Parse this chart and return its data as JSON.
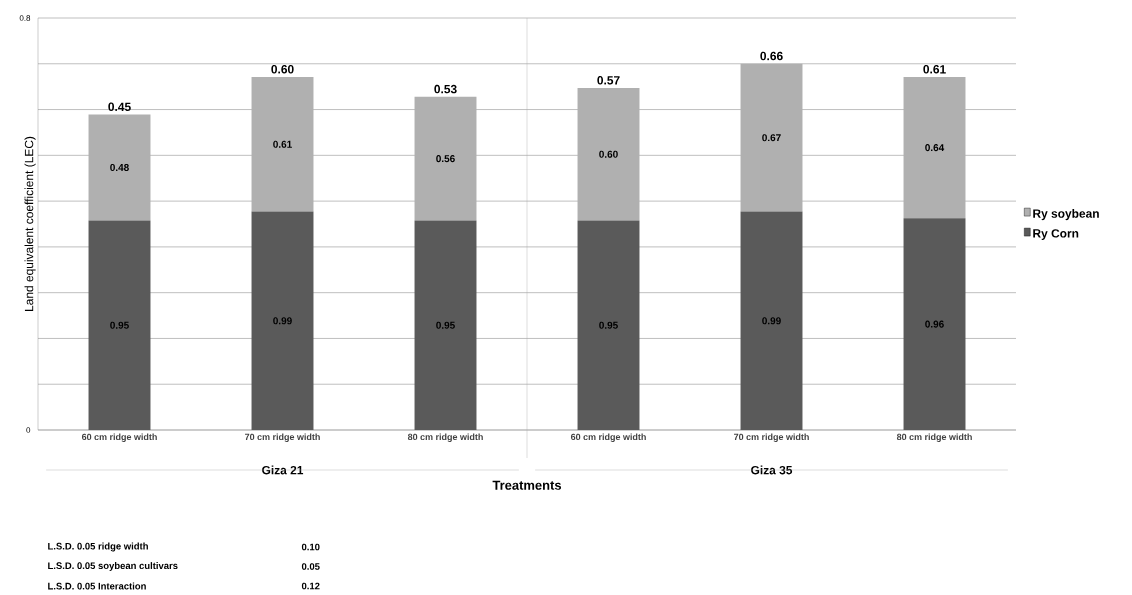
{
  "chart_data": {
    "type": "bar",
    "stacked": true,
    "ylabel": "Land equivalent coefficient (LEC)",
    "xlabel": "Treatments",
    "categories": [
      "60 cm ridge width",
      "70 cm ridge width",
      "80 cm ridge width",
      "60 cm ridge width",
      "70 cm ridge width",
      "80 cm ridge width"
    ],
    "series": [
      {
        "name": "Ry Corn",
        "color": "#5a5a5a",
        "values": [
          0.95,
          0.99,
          0.95,
          0.95,
          0.99,
          0.96
        ],
        "value_labels": [
          "0.95",
          "0.99",
          "0.95",
          "0.95",
          "0.99",
          "0.96"
        ]
      },
      {
        "name": "Ry soybean",
        "color": "#b0b0b0",
        "values": [
          0.48,
          0.61,
          0.56,
          0.6,
          0.67,
          0.64
        ],
        "value_labels": [
          "0.48",
          "0.61",
          "0.56",
          "0.60",
          "0.67",
          "0.64"
        ]
      }
    ],
    "tick_labels": "x",
    "grid": "y",
    "legend": "right",
    "annotations": [
      "Giza 21",
      "Giza 35",
      "0.45",
      "0.60",
      "0.53",
      "0.57",
      "0.66",
      "0.61",
      "0",
      "0.8",
      "L.S.D. 0.05 ridge width",
      "0.10",
      "L.S.D. 0.05 soybean cultivars",
      "0.05",
      "L.S.D. 0.05 Interaction",
      "0.12"
    ]
  }
}
